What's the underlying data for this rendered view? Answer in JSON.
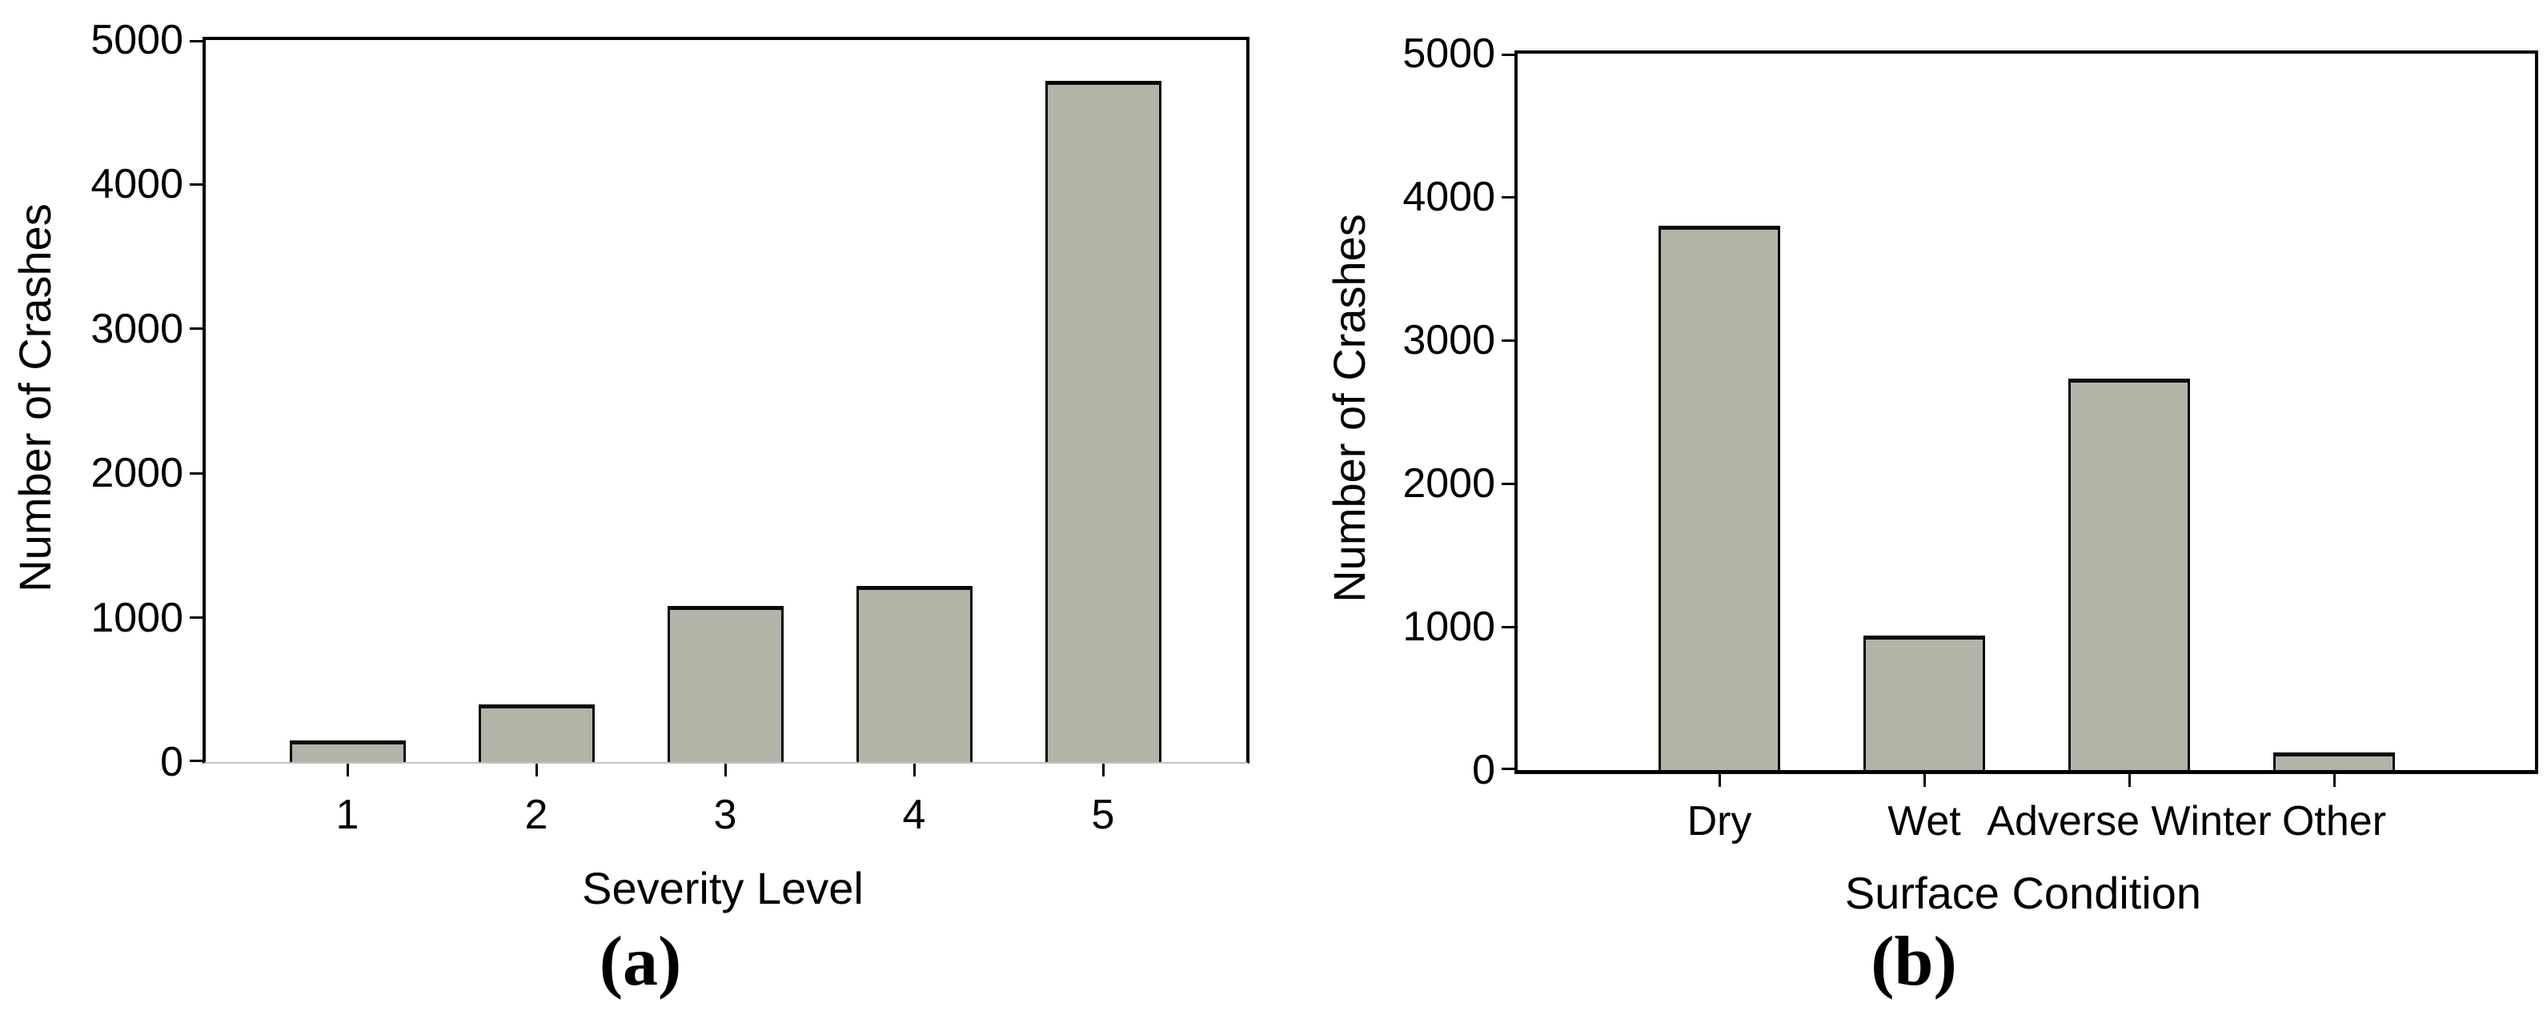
{
  "figure_background": "#ffffff",
  "bar_fill_color": "#b4b3a7",
  "bar_edge_color": "#0a0a0a",
  "axis_color": "#000000",
  "chart_data": [
    {
      "type": "bar",
      "caption": "(a)",
      "xlabel": "Severity Level",
      "ylabel": "Number of Crashes",
      "categories": [
        "1",
        "2",
        "3",
        "4",
        "5"
      ],
      "values": [
        150,
        400,
        1080,
        1220,
        4720
      ],
      "ylim": [
        0,
        5000
      ],
      "yticks": [
        0,
        1000,
        2000,
        3000,
        4000,
        5000
      ],
      "grid": false,
      "legend": "none",
      "bar_color": "#b4b3a7"
    },
    {
      "type": "bar",
      "caption": "(b)",
      "xlabel": "Surface Condition",
      "ylabel": "Number of Crashes",
      "categories": [
        "Dry",
        "Wet",
        "Adverse Winter",
        "Other"
      ],
      "values": [
        3800,
        940,
        2730,
        125
      ],
      "ylim": [
        0,
        5000
      ],
      "yticks": [
        0,
        1000,
        2000,
        3000,
        4000,
        5000
      ],
      "grid": false,
      "legend": "none",
      "bar_color": "#b4b3a7"
    }
  ]
}
